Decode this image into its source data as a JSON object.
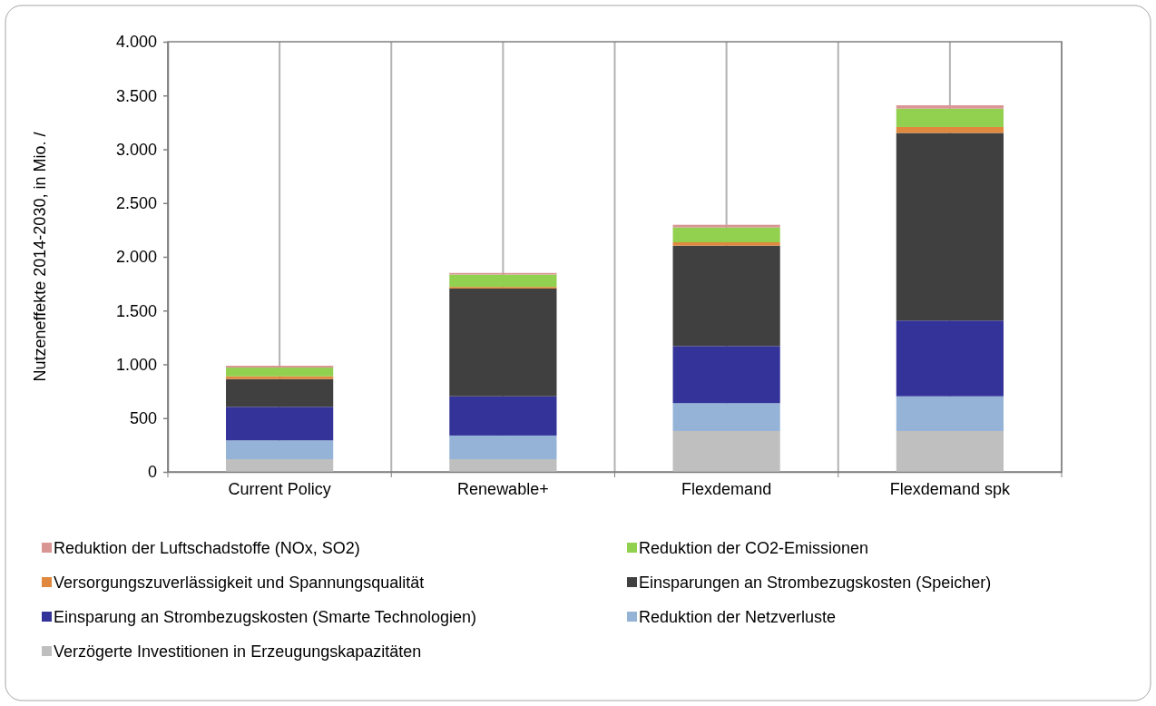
{
  "chart_data": {
    "type": "bar",
    "stacked": true,
    "ylabel": "Nutzeneffekte 2014-2030, in Mio. /",
    "categories": [
      "Current Policy",
      "Renewable+",
      "Flexdemand",
      "Flexdemand spk"
    ],
    "series": [
      {
        "name": "Verzögerte Investitionen in Erzeugungskapazitäten",
        "color": "#bfbfbf",
        "values": [
          118,
          118,
          380,
          380
        ]
      },
      {
        "name": "Reduktion der Netzverluste",
        "color": "#95b3d7",
        "values": [
          175,
          220,
          259,
          323
        ]
      },
      {
        "name": "Einsparung an Strombezugskosten (Smarte Technologien)",
        "color": "#333399",
        "values": [
          312,
          365,
          531,
          704
        ]
      },
      {
        "name": "Einsparungen an Strombezugskosten (Speicher)",
        "color": "#404040",
        "values": [
          258,
          1002,
          934,
          1745
        ]
      },
      {
        "name": "Versorgungszuverlässigkeit und Spannungsqualität",
        "color": "#e0883e",
        "values": [
          26,
          15,
          31,
          55
        ]
      },
      {
        "name": "Reduktion der CO2-Emissionen",
        "color": "#92d050",
        "values": [
          81,
          115,
          138,
          171
        ]
      },
      {
        "name": "Reduktion der Luftschadstoffe (NOx, SO2)",
        "color": "#d99694",
        "values": [
          17,
          15,
          25,
          31
        ]
      }
    ],
    "ylim": [
      0,
      4000
    ],
    "yticks": [
      0,
      {
        "value": 500,
        "label": "500"
      },
      {
        "value": 1000,
        "label": "1.000"
      },
      {
        "value": 1500,
        "label": "1.500"
      },
      {
        "value": 2000,
        "label": "2.000"
      },
      {
        "value": 2500,
        "label": "2.500"
      },
      {
        "value": 3000,
        "label": "3.000"
      },
      {
        "value": 3500,
        "label": "3.500"
      },
      {
        "value": 4000,
        "label": "4.000"
      }
    ],
    "grid": "x",
    "legend": "bottom"
  }
}
